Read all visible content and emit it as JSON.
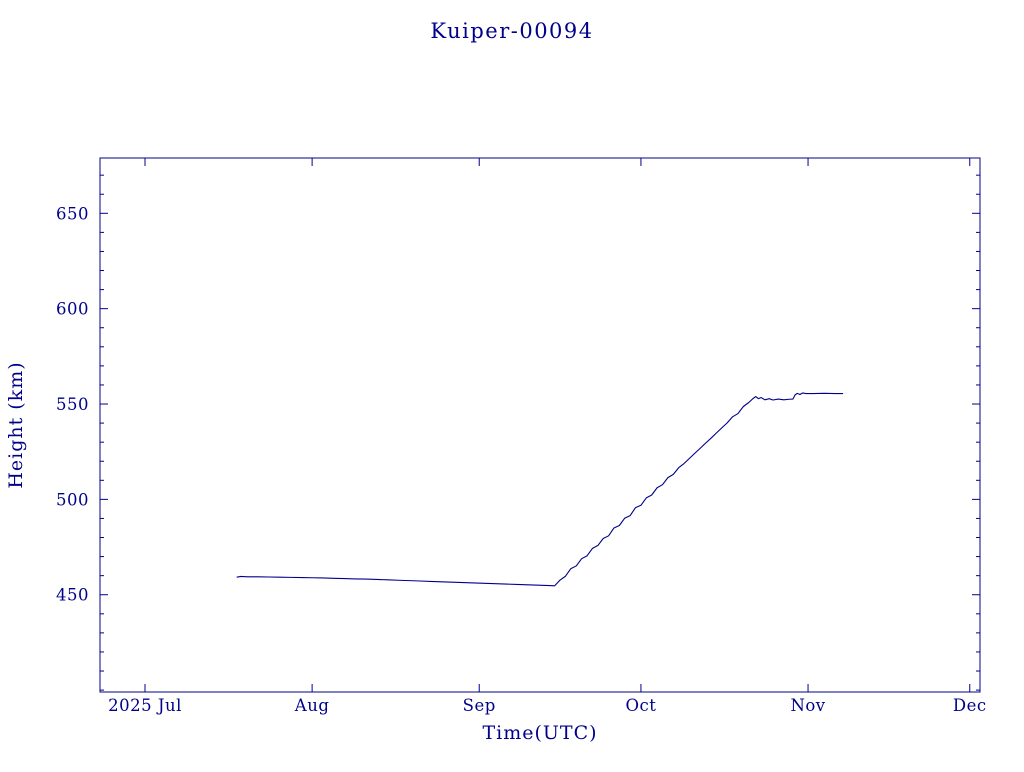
{
  "colors": {
    "ink": "#00008b",
    "background": "#ffffff"
  },
  "chart_data": {
    "type": "line",
    "title": "Kuiper-00094",
    "xlabel": "Time(UTC)",
    "ylabel": "Height (km)",
    "x_unit": "days since 2025-07-01",
    "xlim": [
      -8.35,
      154.9
    ],
    "ylim": [
      399,
      679
    ],
    "grid": false,
    "legend": "none",
    "x_ticks": [
      {
        "label": "2025 Jul",
        "day": 0
      },
      {
        "label": "Aug",
        "day": 31
      },
      {
        "label": "Sep",
        "day": 62
      },
      {
        "label": "Oct",
        "day": 92
      },
      {
        "label": "Nov",
        "day": 123
      },
      {
        "label": "Dec",
        "day": 153
      }
    ],
    "y_ticks": [
      450,
      500,
      550,
      600,
      650
    ],
    "y_minor_step": 10,
    "series": [
      {
        "name": "height-km",
        "points": [
          [
            17,
            459.2
          ],
          [
            17.8,
            459.6
          ],
          [
            19,
            459.4
          ],
          [
            21,
            459.4
          ],
          [
            23,
            459.3
          ],
          [
            25,
            459.2
          ],
          [
            27,
            459.1
          ],
          [
            29,
            459.0
          ],
          [
            31,
            458.9
          ],
          [
            33,
            458.8
          ],
          [
            35,
            458.6
          ],
          [
            37,
            458.5
          ],
          [
            39,
            458.3
          ],
          [
            41,
            458.2
          ],
          [
            43,
            458.0
          ],
          [
            45,
            457.8
          ],
          [
            47,
            457.6
          ],
          [
            49,
            457.4
          ],
          [
            51,
            457.2
          ],
          [
            53,
            457.0
          ],
          [
            55,
            456.8
          ],
          [
            57,
            456.6
          ],
          [
            59,
            456.4
          ],
          [
            61,
            456.2
          ],
          [
            63,
            456.0
          ],
          [
            65,
            455.8
          ],
          [
            67,
            455.6
          ],
          [
            69,
            455.4
          ],
          [
            71,
            455.2
          ],
          [
            73,
            455.0
          ],
          [
            75,
            454.8
          ],
          [
            76,
            454.7
          ],
          [
            77,
            457.7
          ],
          [
            78,
            459.7
          ],
          [
            79,
            463.7
          ],
          [
            80,
            465.1
          ],
          [
            81,
            468.9
          ],
          [
            82,
            470.4
          ],
          [
            83,
            474.3
          ],
          [
            84,
            475.8
          ],
          [
            85,
            479.5
          ],
          [
            86,
            480.9
          ],
          [
            87,
            485.0
          ],
          [
            88,
            486.3
          ],
          [
            89,
            490.2
          ],
          [
            90,
            491.5
          ],
          [
            91,
            495.7
          ],
          [
            92,
            496.9
          ],
          [
            93,
            500.8
          ],
          [
            94,
            502.3
          ],
          [
            95,
            506.1
          ],
          [
            96,
            507.7
          ],
          [
            97,
            511.4
          ],
          [
            98,
            513.1
          ],
          [
            99,
            516.6
          ],
          [
            100,
            518.8
          ],
          [
            101,
            521.5
          ],
          [
            102,
            524.2
          ],
          [
            103,
            526.8
          ],
          [
            104,
            529.5
          ],
          [
            105,
            532.1
          ],
          [
            106,
            534.8
          ],
          [
            107,
            537.5
          ],
          [
            108,
            540.1
          ],
          [
            109,
            543.3
          ],
          [
            110,
            545.0
          ],
          [
            111,
            548.7
          ],
          [
            112,
            550.8
          ],
          [
            112.8,
            552.9
          ],
          [
            113.3,
            553.9
          ],
          [
            113.8,
            552.8
          ],
          [
            114.3,
            553.4
          ],
          [
            115,
            552.2
          ],
          [
            115.8,
            552.8
          ],
          [
            116.5,
            552.1
          ],
          [
            117.5,
            552.6
          ],
          [
            118.5,
            552.2
          ],
          [
            119.5,
            552.5
          ],
          [
            120.2,
            552.6
          ],
          [
            120.6,
            554.8
          ],
          [
            121,
            555.6
          ],
          [
            121.5,
            555.0
          ],
          [
            122,
            555.8
          ],
          [
            122.6,
            555.5
          ],
          [
            124,
            555.5
          ],
          [
            126,
            555.6
          ],
          [
            128,
            555.5
          ],
          [
            129.5,
            555.5
          ]
        ]
      }
    ]
  }
}
